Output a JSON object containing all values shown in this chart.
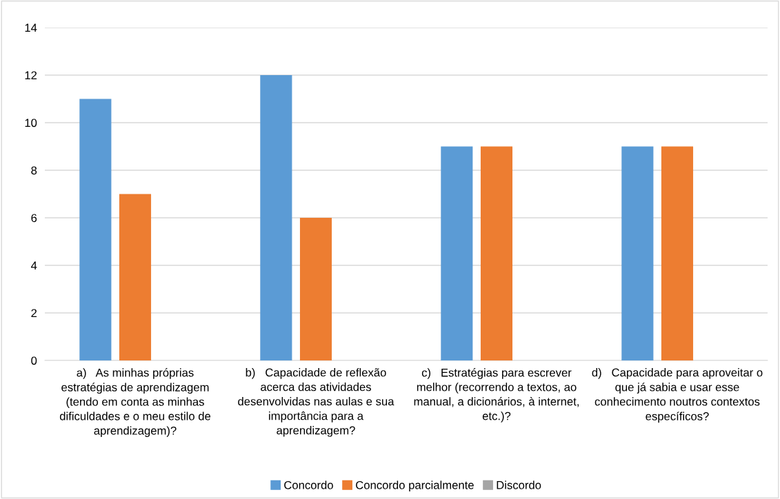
{
  "chart_data": {
    "type": "bar",
    "categories": [
      "a)   As minhas próprias\nestratégias de aprendizagem\n(tendo em conta as minhas\ndificuldades e o meu estilo de\naprendizagem)?",
      "b)   Capacidade de reflexão\nacerca das atividades\ndesenvolvidas nas aulas e sua\nimportância para a\naprendizagem?",
      "c)   Estratégias para escrever\nmelhor (recorrendo a textos, ao\nmanual, a dicionários, à internet,\netc.)?",
      "d)   Capacidade para aproveitar o\nque já sabia e usar esse\nconhecimento noutros contextos\nespecíficos?"
    ],
    "series": [
      {
        "name": "Concordo",
        "color": "#5b9bd5",
        "values": [
          11,
          12,
          9,
          9
        ]
      },
      {
        "name": "Concordo parcialmente",
        "color": "#ed7d31",
        "values": [
          7,
          6,
          9,
          9
        ]
      },
      {
        "name": "Discordo",
        "color": "#a5a5a5",
        "values": [
          0,
          0,
          0,
          0
        ]
      }
    ],
    "ylim": [
      0,
      14
    ],
    "yticks": [
      0,
      2,
      4,
      6,
      8,
      10,
      12,
      14
    ],
    "grid": "y",
    "legend": "bottom"
  }
}
